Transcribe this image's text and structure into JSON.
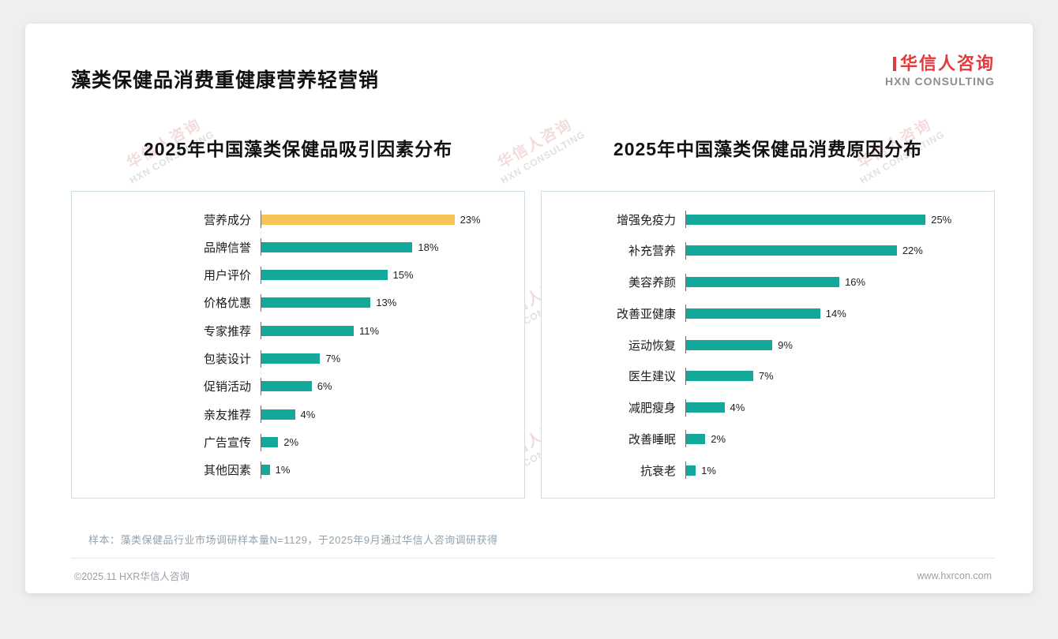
{
  "page": {
    "title": "藻类保健品消费重健康营养轻营销",
    "logo": {
      "cn": "华信人咨询",
      "en": "HXN CONSULTING"
    },
    "watermark": {
      "cn": "华信人咨询",
      "en": "HXN CONSULTING"
    },
    "sample_note": "样本：藻类保健品行业市场调研样本量N=1129，于2025年9月通过华信人咨询调研获得",
    "copyright": "©2025.11 HXR华信人咨询",
    "website": "www.hxrcon.com"
  },
  "colors": {
    "teal": "#14a89b",
    "gold": "#f6c454",
    "logo_red": "#e23a3c"
  },
  "chart_data": [
    {
      "type": "bar",
      "orientation": "horizontal",
      "title": "2025年中国藻类保健品吸引因素分布",
      "categories": [
        "营养成分",
        "品牌信誉",
        "用户评价",
        "价格优惠",
        "专家推荐",
        "包装设计",
        "促销活动",
        "亲友推荐",
        "广告宣传",
        "其他因素"
      ],
      "values": [
        23,
        18,
        15,
        13,
        11,
        7,
        6,
        4,
        2,
        1
      ],
      "value_suffix": "%",
      "xlim": [
        0,
        30
      ],
      "highlight_index": 0,
      "legend": "none",
      "grid": false
    },
    {
      "type": "bar",
      "orientation": "horizontal",
      "title": "2025年中国藻类保健品消费原因分布",
      "categories": [
        "增强免疫力",
        "补充营养",
        "美容养颜",
        "改善亚健康",
        "运动恢复",
        "医生建议",
        "减肥瘦身",
        "改善睡眠",
        "抗衰老"
      ],
      "values": [
        25,
        22,
        16,
        14,
        9,
        7,
        4,
        2,
        1
      ],
      "value_suffix": "%",
      "xlim": [
        0,
        31
      ],
      "highlight_index": -1,
      "legend": "none",
      "grid": false
    }
  ]
}
